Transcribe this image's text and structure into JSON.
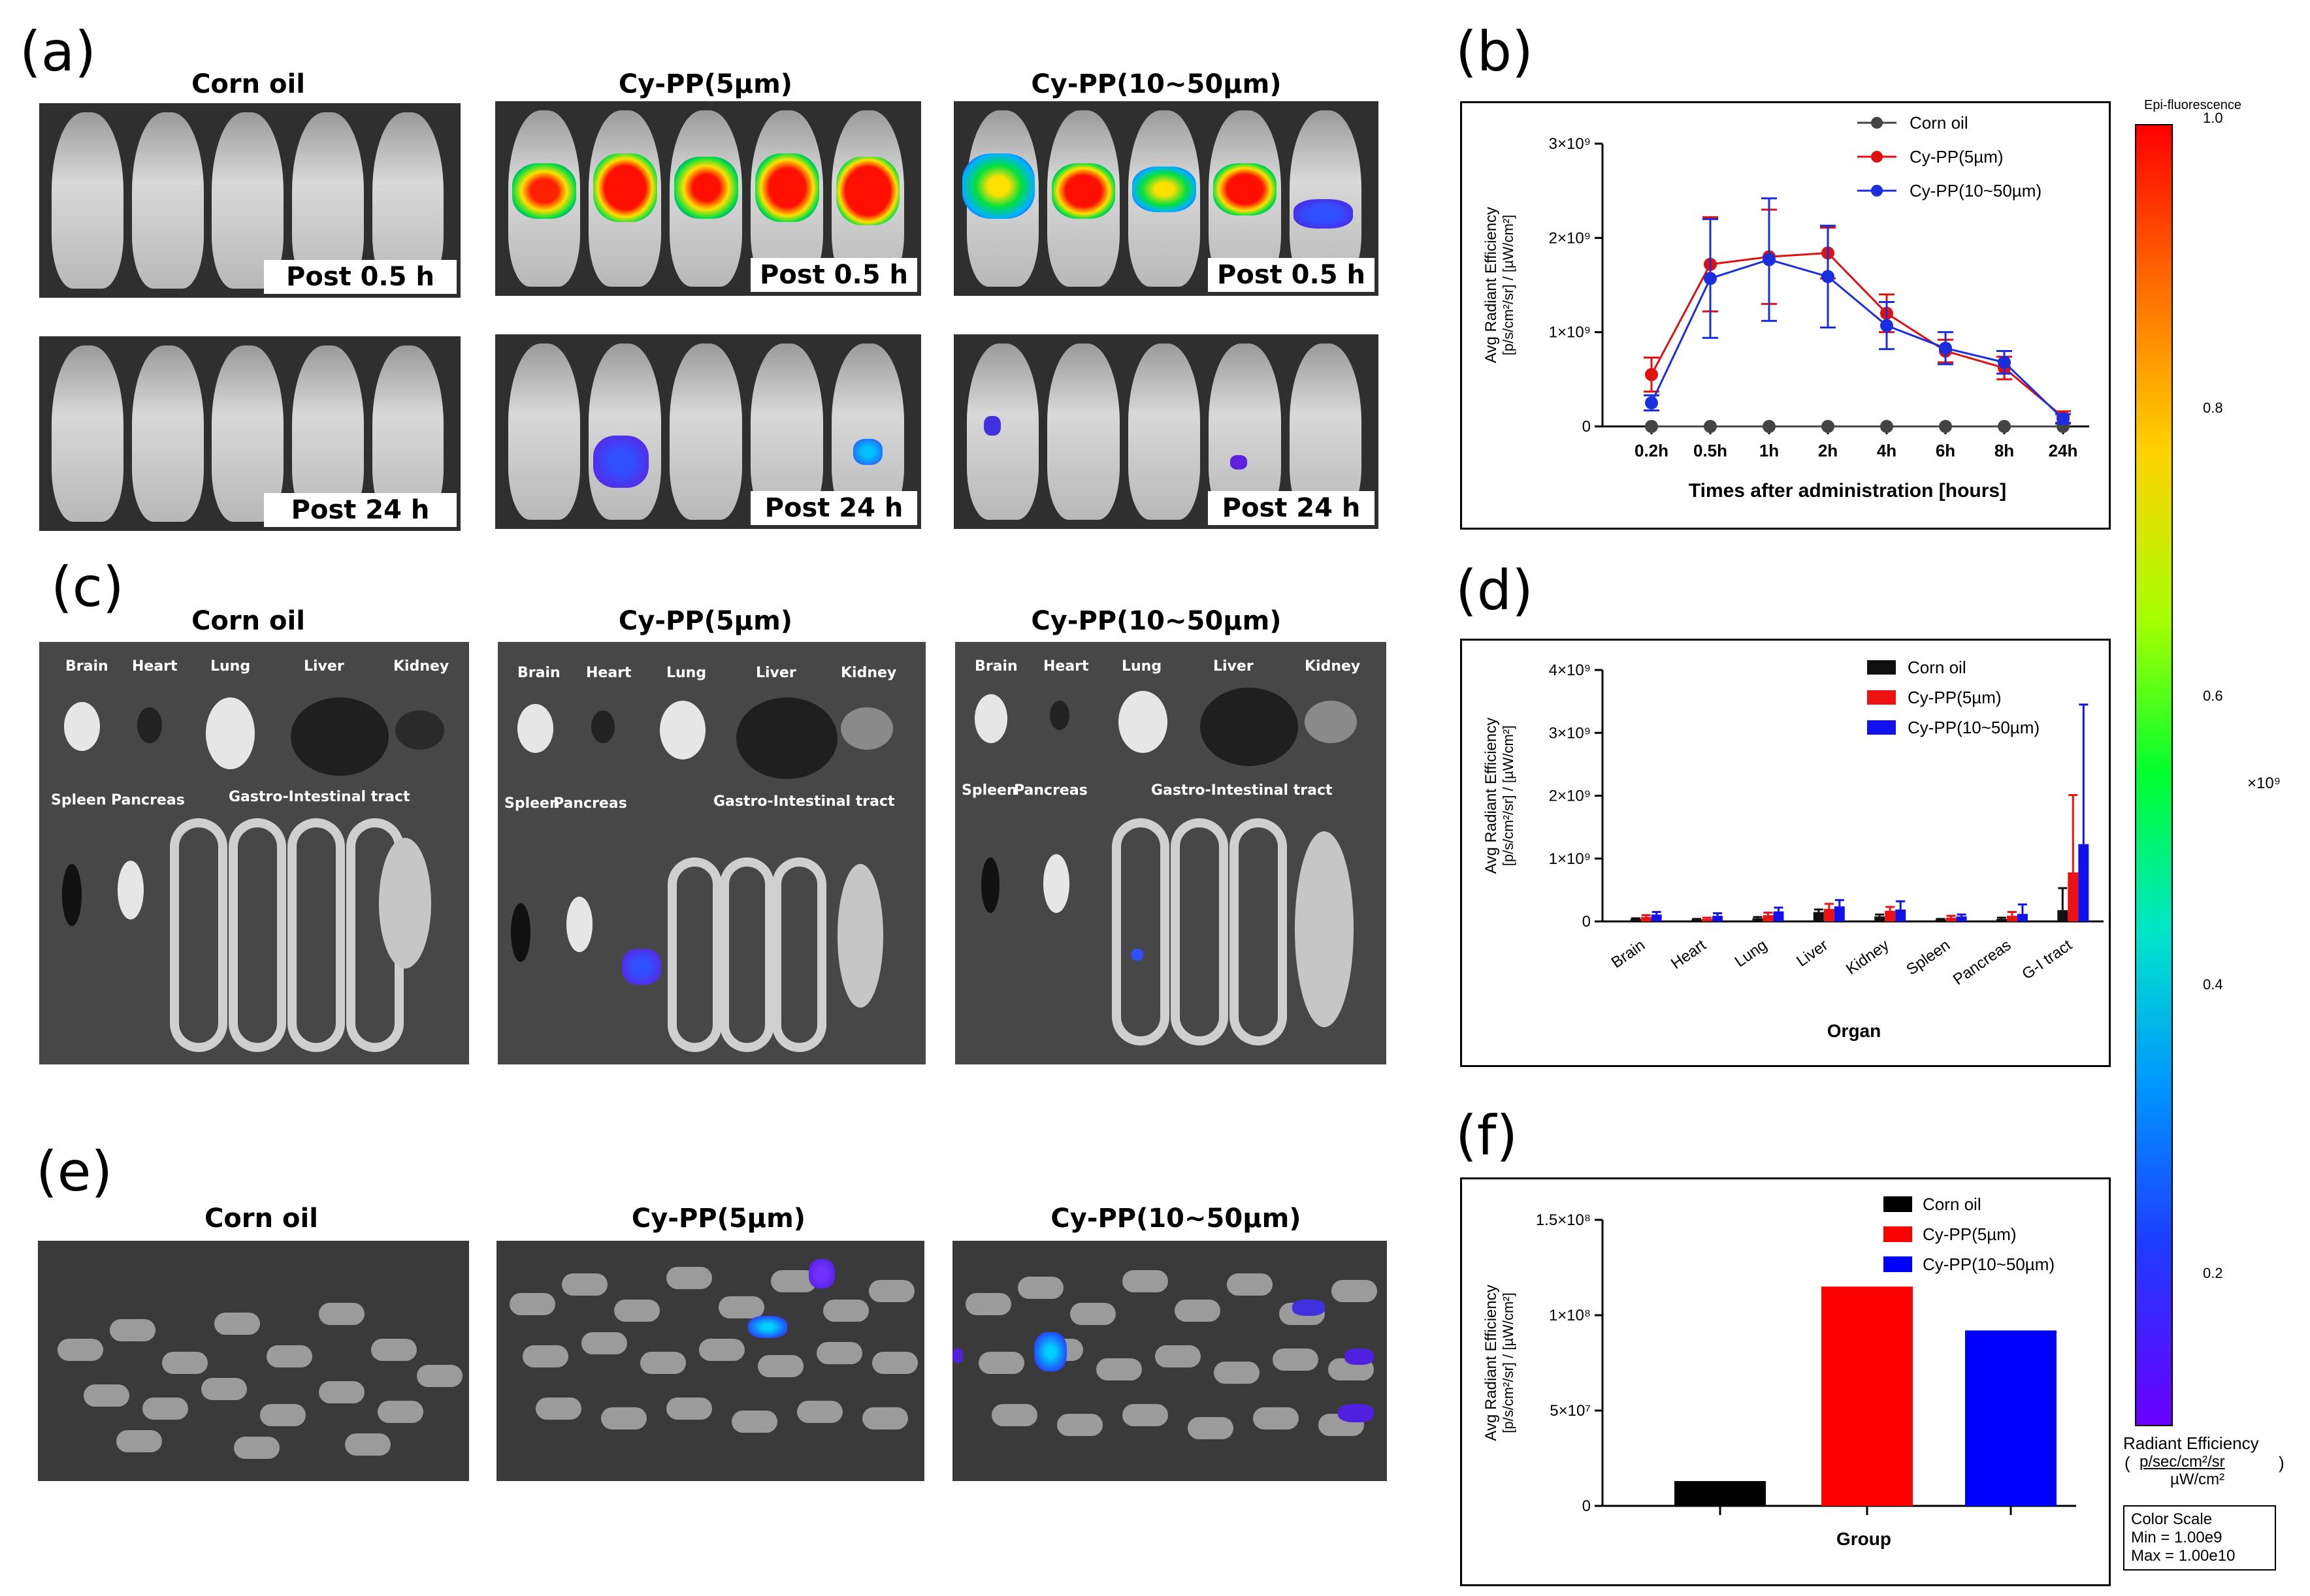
{
  "panel_labels": {
    "a": "(a)",
    "b": "(b)",
    "c": "(c)",
    "d": "(d)",
    "e": "(e)",
    "f": "(f)"
  },
  "groups": [
    "Corn oil",
    "Cy-PP(5µm)",
    "Cy-PP(10~50µm)"
  ],
  "panel_a": {
    "post_early": "Post 0.5 h",
    "post_late": "Post 24 h"
  },
  "panel_c": {
    "organs_top": [
      "Brain",
      "Heart",
      "Lung",
      "Liver",
      "Kidney"
    ],
    "organs_bottom": [
      "Spleen",
      "Pancreas",
      "Gastro-Intestinal tract"
    ]
  },
  "colorbar": {
    "title": "Epi-fluorescence",
    "ticks": [
      "1.0",
      "0.8",
      "0.6",
      "0.4",
      "0.2"
    ],
    "multiplier": "×10⁹",
    "unit_title": "Radiant Efficiency",
    "unit_num": "p/sec/cm²/sr",
    "unit_den": "µW/cm²",
    "scale_title": "Color Scale",
    "scale_min": "Min = 1.00e9",
    "scale_max": "Max = 1.00e10"
  },
  "chart_data": [
    {
      "id": "b",
      "type": "line",
      "xlabel": "Times after administration [hours]",
      "ylabel_line1": "Avg Radiant Efficiency",
      "ylabel_line2": "[p/s/cm²/sr] / [µW/cm²]",
      "categories": [
        "0.2h",
        "0.5h",
        "1h",
        "2h",
        "4h",
        "6h",
        "8h",
        "24h"
      ],
      "ylim": [
        0,
        3000000000
      ],
      "yticks": [
        {
          "v": 0,
          "t": "0"
        },
        {
          "v": 1000000000,
          "t": "1×10⁹"
        },
        {
          "v": 2000000000,
          "t": "2×10⁹"
        },
        {
          "v": 3000000000,
          "t": "3×10⁹"
        }
      ],
      "series": [
        {
          "name": "Corn oil",
          "color": "#444444",
          "values": [
            0,
            0,
            0,
            0,
            0,
            0,
            0,
            0
          ],
          "errors": [
            0,
            0,
            0,
            0,
            0,
            0,
            0,
            0
          ]
        },
        {
          "name": "Cy-PP(5µm)",
          "color": "#e01010",
          "values": [
            550000000,
            1720000000,
            1800000000,
            1840000000,
            1200000000,
            800000000,
            620000000,
            100000000
          ],
          "errors": [
            180000000,
            500000000,
            500000000,
            270000000,
            200000000,
            120000000,
            120000000,
            60000000
          ]
        },
        {
          "name": "Cy-PP(10~50µm)",
          "color": "#1a2ee0",
          "values": [
            250000000,
            1570000000,
            1770000000,
            1590000000,
            1070000000,
            830000000,
            680000000,
            80000000
          ],
          "errors": [
            80000000,
            630000000,
            650000000,
            540000000,
            250000000,
            170000000,
            120000000,
            50000000
          ]
        }
      ]
    },
    {
      "id": "d",
      "type": "bar",
      "xlabel": "Organ",
      "ylabel_line1": "Avg Radiant Efficiency",
      "ylabel_line2": "[p/s/cm²/sr] / [µW/cm²]",
      "categories": [
        "Brain",
        "Heart",
        "Lung",
        "Liver",
        "Kidney",
        "Spleen",
        "Pancreas",
        "G-I tract"
      ],
      "ylim": [
        0,
        4000000000
      ],
      "yticks": [
        {
          "v": 0,
          "t": "0"
        },
        {
          "v": 1000000000,
          "t": "1×10⁹"
        },
        {
          "v": 2000000000,
          "t": "2×10⁹"
        },
        {
          "v": 3000000000,
          "t": "3×10⁹"
        },
        {
          "v": 4000000000,
          "t": "4×10⁹"
        }
      ],
      "series": [
        {
          "name": "Corn oil",
          "color": "#111111",
          "values": [
            40000000,
            30000000,
            50000000,
            150000000,
            80000000,
            30000000,
            40000000,
            180000000
          ],
          "errors": [
            10000000,
            10000000,
            20000000,
            40000000,
            30000000,
            10000000,
            20000000,
            350000000
          ]
        },
        {
          "name": "Cy-PP(5µm)",
          "color": "#ee1111",
          "values": [
            70000000,
            40000000,
            100000000,
            200000000,
            170000000,
            60000000,
            90000000,
            780000000
          ],
          "errors": [
            30000000,
            20000000,
            40000000,
            80000000,
            60000000,
            30000000,
            60000000,
            1230000000
          ]
        },
        {
          "name": "Cy-PP(10~50µm)",
          "color": "#1111ee",
          "values": [
            110000000,
            90000000,
            160000000,
            240000000,
            190000000,
            80000000,
            120000000,
            1230000000
          ],
          "errors": [
            40000000,
            40000000,
            60000000,
            100000000,
            130000000,
            30000000,
            150000000,
            2220000000
          ]
        }
      ]
    },
    {
      "id": "f",
      "type": "bar",
      "xlabel": "Group",
      "ylabel_line1": "Avg Radiant Efficiency",
      "ylabel_line2": "[p/s/cm²/sr] / [µW/cm²]",
      "categories": [
        "Corn oil",
        "Cy-PP(5µm)",
        "Cy-PP(10~50µm)"
      ],
      "ylim": [
        0,
        150000000
      ],
      "yticks": [
        {
          "v": 0,
          "t": "0"
        },
        {
          "v": 50000000,
          "t": "5×10⁷"
        },
        {
          "v": 100000000,
          "t": "1×10⁸"
        },
        {
          "v": 150000000,
          "t": "1.5×10⁸"
        }
      ],
      "series": [
        {
          "name": "Group",
          "colors": [
            "#000000",
            "#ff0000",
            "#0000ff"
          ],
          "values": [
            13000000,
            115000000,
            92000000
          ]
        }
      ]
    }
  ]
}
